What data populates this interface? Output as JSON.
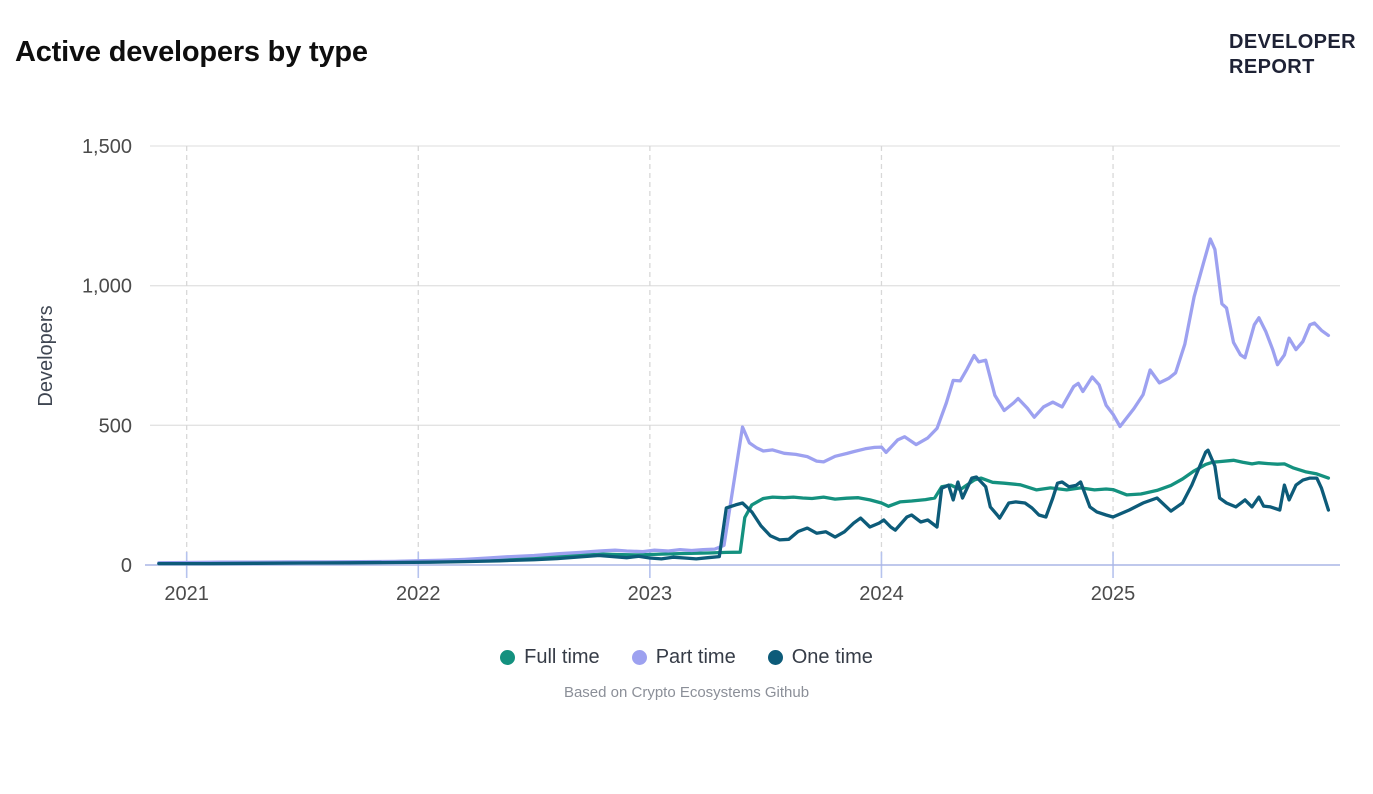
{
  "header": {
    "title": "Active developers by type",
    "logo_line1": "DEVELOPER",
    "logo_line2": "REPORT"
  },
  "footer": {
    "caption": "Based on Crypto Ecosystems Github"
  },
  "chart_data": {
    "type": "line",
    "title": "Active developers by type",
    "xlabel": "",
    "ylabel": "Developers",
    "xlim": [
      2020.82,
      2025.98
    ],
    "ylim": [
      0,
      1500
    ],
    "x_ticks": [
      2021,
      2022,
      2023,
      2024,
      2025
    ],
    "x_tick_labels": [
      "2021",
      "2022",
      "2023",
      "2024",
      "2025"
    ],
    "y_ticks": [
      0,
      500,
      1000,
      1500
    ],
    "y_tick_labels": [
      "0",
      "500",
      "1,000",
      "1,500"
    ],
    "grid": {
      "horizontal_solid": true,
      "vertical_dashed": true
    },
    "legend_position": "bottom",
    "colors": {
      "axis_line": "#aab5e6",
      "axis_tick": "#b6c3ee",
      "grid_horizontal": "#e3e3e3",
      "grid_vertical": "#d8d8d8",
      "tick_label": "#4b4b4b",
      "axis_title": "#3f4652"
    },
    "series": [
      {
        "name": "Full time",
        "color": "#14917f",
        "points": [
          [
            2020.88,
            6
          ],
          [
            2021.1,
            7
          ],
          [
            2021.3,
            8
          ],
          [
            2021.5,
            9
          ],
          [
            2021.7,
            10
          ],
          [
            2021.9,
            12
          ],
          [
            2022.05,
            14
          ],
          [
            2022.2,
            17
          ],
          [
            2022.35,
            22
          ],
          [
            2022.5,
            27
          ],
          [
            2022.6,
            31
          ],
          [
            2022.7,
            35
          ],
          [
            2022.8,
            39
          ],
          [
            2022.88,
            37
          ],
          [
            2022.95,
            36
          ],
          [
            2023.05,
            39
          ],
          [
            2023.15,
            41
          ],
          [
            2023.25,
            43
          ],
          [
            2023.33,
            45
          ],
          [
            2023.39,
            46
          ],
          [
            2023.41,
            170
          ],
          [
            2023.44,
            215
          ],
          [
            2023.49,
            238
          ],
          [
            2023.53,
            243
          ],
          [
            2023.58,
            241
          ],
          [
            2023.62,
            243
          ],
          [
            2023.66,
            240
          ],
          [
            2023.7,
            238
          ],
          [
            2023.75,
            243
          ],
          [
            2023.8,
            236
          ],
          [
            2023.85,
            239
          ],
          [
            2023.9,
            241
          ],
          [
            2023.95,
            233
          ],
          [
            2024.0,
            222
          ],
          [
            2024.03,
            210
          ],
          [
            2024.08,
            226
          ],
          [
            2024.13,
            229
          ],
          [
            2024.19,
            234
          ],
          [
            2024.23,
            240
          ],
          [
            2024.26,
            280
          ],
          [
            2024.3,
            286
          ],
          [
            2024.34,
            270
          ],
          [
            2024.4,
            304
          ],
          [
            2024.43,
            311
          ],
          [
            2024.48,
            296
          ],
          [
            2024.53,
            293
          ],
          [
            2024.6,
            287
          ],
          [
            2024.67,
            269
          ],
          [
            2024.73,
            276
          ],
          [
            2024.8,
            269
          ],
          [
            2024.86,
            276
          ],
          [
            2024.92,
            269
          ],
          [
            2024.97,
            272
          ],
          [
            2025.0,
            270
          ],
          [
            2025.06,
            251
          ],
          [
            2025.12,
            254
          ],
          [
            2025.19,
            267
          ],
          [
            2025.25,
            285
          ],
          [
            2025.3,
            308
          ],
          [
            2025.35,
            337
          ],
          [
            2025.4,
            360
          ],
          [
            2025.43,
            368
          ],
          [
            2025.46,
            370
          ],
          [
            2025.52,
            375
          ],
          [
            2025.56,
            368
          ],
          [
            2025.6,
            362
          ],
          [
            2025.63,
            366
          ],
          [
            2025.67,
            363
          ],
          [
            2025.71,
            361
          ],
          [
            2025.74,
            362
          ],
          [
            2025.78,
            347
          ],
          [
            2025.83,
            334
          ],
          [
            2025.88,
            326
          ],
          [
            2025.93,
            311
          ]
        ]
      },
      {
        "name": "Part time",
        "color": "#9da1f0",
        "points": [
          [
            2020.88,
            8
          ],
          [
            2021.0,
            9
          ],
          [
            2021.15,
            10
          ],
          [
            2021.3,
            10
          ],
          [
            2021.45,
            11
          ],
          [
            2021.6,
            11
          ],
          [
            2021.75,
            12
          ],
          [
            2021.9,
            13
          ],
          [
            2022.0,
            15
          ],
          [
            2022.1,
            17
          ],
          [
            2022.2,
            20
          ],
          [
            2022.3,
            25
          ],
          [
            2022.4,
            30
          ],
          [
            2022.5,
            34
          ],
          [
            2022.6,
            40
          ],
          [
            2022.7,
            45
          ],
          [
            2022.78,
            50
          ],
          [
            2022.85,
            53
          ],
          [
            2022.9,
            50
          ],
          [
            2022.97,
            48
          ],
          [
            2023.02,
            53
          ],
          [
            2023.08,
            50
          ],
          [
            2023.13,
            55
          ],
          [
            2023.18,
            52
          ],
          [
            2023.23,
            55
          ],
          [
            2023.28,
            57
          ],
          [
            2023.32,
            70
          ],
          [
            2023.4,
            494
          ],
          [
            2023.43,
            437
          ],
          [
            2023.46,
            420
          ],
          [
            2023.49,
            408
          ],
          [
            2023.53,
            412
          ],
          [
            2023.58,
            400
          ],
          [
            2023.63,
            396
          ],
          [
            2023.68,
            388
          ],
          [
            2023.72,
            372
          ],
          [
            2023.75,
            369
          ],
          [
            2023.8,
            389
          ],
          [
            2023.85,
            399
          ],
          [
            2023.88,
            406
          ],
          [
            2023.93,
            416
          ],
          [
            2023.97,
            421
          ],
          [
            2024.0,
            422
          ],
          [
            2024.02,
            403
          ],
          [
            2024.07,
            448
          ],
          [
            2024.1,
            459
          ],
          [
            2024.15,
            431
          ],
          [
            2024.2,
            455
          ],
          [
            2024.24,
            489
          ],
          [
            2024.28,
            580
          ],
          [
            2024.31,
            661
          ],
          [
            2024.34,
            659
          ],
          [
            2024.37,
            702
          ],
          [
            2024.4,
            750
          ],
          [
            2024.42,
            727
          ],
          [
            2024.45,
            733
          ],
          [
            2024.49,
            607
          ],
          [
            2024.53,
            553
          ],
          [
            2024.57,
            580
          ],
          [
            2024.59,
            596
          ],
          [
            2024.63,
            561
          ],
          [
            2024.66,
            529
          ],
          [
            2024.7,
            566
          ],
          [
            2024.74,
            583
          ],
          [
            2024.78,
            566
          ],
          [
            2024.83,
            639
          ],
          [
            2024.85,
            650
          ],
          [
            2024.87,
            621
          ],
          [
            2024.91,
            673
          ],
          [
            2024.94,
            645
          ],
          [
            2024.97,
            572
          ],
          [
            2025.0,
            540
          ],
          [
            2025.03,
            496
          ],
          [
            2025.09,
            560
          ],
          [
            2025.13,
            610
          ],
          [
            2025.16,
            698
          ],
          [
            2025.2,
            652
          ],
          [
            2025.24,
            668
          ],
          [
            2025.27,
            688
          ],
          [
            2025.31,
            790
          ],
          [
            2025.35,
            960
          ],
          [
            2025.39,
            1080
          ],
          [
            2025.42,
            1167
          ],
          [
            2025.44,
            1130
          ],
          [
            2025.47,
            935
          ],
          [
            2025.49,
            920
          ],
          [
            2025.52,
            797
          ],
          [
            2025.55,
            753
          ],
          [
            2025.57,
            742
          ],
          [
            2025.61,
            860
          ],
          [
            2025.63,
            885
          ],
          [
            2025.66,
            835
          ],
          [
            2025.69,
            770
          ],
          [
            2025.71,
            717
          ],
          [
            2025.74,
            752
          ],
          [
            2025.76,
            812
          ],
          [
            2025.79,
            771
          ],
          [
            2025.82,
            800
          ],
          [
            2025.85,
            860
          ],
          [
            2025.87,
            866
          ],
          [
            2025.9,
            840
          ],
          [
            2025.93,
            822
          ]
        ]
      },
      {
        "name": "One time",
        "color": "#0d5b79",
        "points": [
          [
            2020.88,
            5
          ],
          [
            2021.1,
            5
          ],
          [
            2021.3,
            6
          ],
          [
            2021.5,
            7
          ],
          [
            2021.7,
            8
          ],
          [
            2021.9,
            9
          ],
          [
            2022.05,
            10
          ],
          [
            2022.2,
            12
          ],
          [
            2022.35,
            15
          ],
          [
            2022.5,
            19
          ],
          [
            2022.6,
            23
          ],
          [
            2022.7,
            29
          ],
          [
            2022.78,
            34
          ],
          [
            2022.84,
            30
          ],
          [
            2022.9,
            26
          ],
          [
            2022.95,
            31
          ],
          [
            2023.0,
            25
          ],
          [
            2023.05,
            22
          ],
          [
            2023.1,
            28
          ],
          [
            2023.15,
            25
          ],
          [
            2023.2,
            22
          ],
          [
            2023.25,
            26
          ],
          [
            2023.3,
            30
          ],
          [
            2023.33,
            204
          ],
          [
            2023.37,
            215
          ],
          [
            2023.4,
            222
          ],
          [
            2023.44,
            190
          ],
          [
            2023.48,
            140
          ],
          [
            2023.52,
            105
          ],
          [
            2023.56,
            90
          ],
          [
            2023.6,
            92
          ],
          [
            2023.64,
            120
          ],
          [
            2023.68,
            132
          ],
          [
            2023.72,
            114
          ],
          [
            2023.76,
            119
          ],
          [
            2023.8,
            100
          ],
          [
            2023.84,
            119
          ],
          [
            2023.88,
            150
          ],
          [
            2023.91,
            168
          ],
          [
            2023.95,
            136
          ],
          [
            2023.99,
            150
          ],
          [
            2024.01,
            161
          ],
          [
            2024.04,
            136
          ],
          [
            2024.06,
            125
          ],
          [
            2024.11,
            172
          ],
          [
            2024.13,
            179
          ],
          [
            2024.17,
            154
          ],
          [
            2024.2,
            161
          ],
          [
            2024.24,
            136
          ],
          [
            2024.26,
            275
          ],
          [
            2024.29,
            286
          ],
          [
            2024.31,
            233
          ],
          [
            2024.33,
            297
          ],
          [
            2024.35,
            240
          ],
          [
            2024.39,
            311
          ],
          [
            2024.41,
            315
          ],
          [
            2024.45,
            280
          ],
          [
            2024.47,
            208
          ],
          [
            2024.5,
            179
          ],
          [
            2024.51,
            168
          ],
          [
            2024.55,
            222
          ],
          [
            2024.58,
            226
          ],
          [
            2024.62,
            222
          ],
          [
            2024.65,
            204
          ],
          [
            2024.68,
            179
          ],
          [
            2024.71,
            172
          ],
          [
            2024.74,
            240
          ],
          [
            2024.76,
            293
          ],
          [
            2024.78,
            297
          ],
          [
            2024.81,
            280
          ],
          [
            2024.84,
            285
          ],
          [
            2024.86,
            297
          ],
          [
            2024.9,
            208
          ],
          [
            2024.93,
            190
          ],
          [
            2024.97,
            179
          ],
          [
            2025.0,
            172
          ],
          [
            2025.07,
            197
          ],
          [
            2025.13,
            222
          ],
          [
            2025.19,
            240
          ],
          [
            2025.25,
            193
          ],
          [
            2025.3,
            222
          ],
          [
            2025.34,
            286
          ],
          [
            2025.4,
            404
          ],
          [
            2025.41,
            411
          ],
          [
            2025.44,
            354
          ],
          [
            2025.46,
            240
          ],
          [
            2025.49,
            222
          ],
          [
            2025.53,
            208
          ],
          [
            2025.57,
            233
          ],
          [
            2025.6,
            208
          ],
          [
            2025.63,
            243
          ],
          [
            2025.65,
            211
          ],
          [
            2025.68,
            208
          ],
          [
            2025.72,
            197
          ],
          [
            2025.74,
            286
          ],
          [
            2025.76,
            233
          ],
          [
            2025.79,
            286
          ],
          [
            2025.82,
            304
          ],
          [
            2025.85,
            311
          ],
          [
            2025.88,
            311
          ],
          [
            2025.9,
            275
          ],
          [
            2025.93,
            197
          ]
        ]
      }
    ]
  }
}
